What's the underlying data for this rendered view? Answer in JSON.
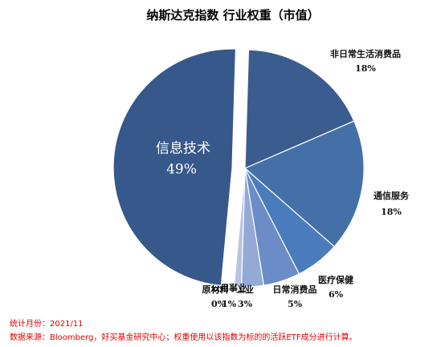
{
  "chart_data": {
    "type": "pie",
    "title": "纳斯达克指数 行业权重（市值）",
    "categories": [
      "非日常生活消费品",
      "通信服务",
      "医疗保健",
      "日常消费品",
      "工业",
      "公用事业",
      "原材料",
      "信息技术"
    ],
    "values": [
      18,
      18,
      6,
      5,
      3,
      1,
      0,
      49
    ],
    "value_labels": [
      "18%",
      "18%",
      "6%",
      "5%",
      "3%",
      "1%",
      "0%",
      "49%"
    ],
    "colors": [
      "#3b5c8f",
      "#4470a7",
      "#4a7bbd",
      "#6b8cc6",
      "#93a9d6",
      "#b6c4e3",
      "#d6dff0",
      "#36588a"
    ],
    "notes": [
      "统计月份：2021/11",
      "数据来源：Bloomberg，好买基金研究中心；权重使用以该指数为标的的活跃ETF成分进行计算。"
    ]
  }
}
